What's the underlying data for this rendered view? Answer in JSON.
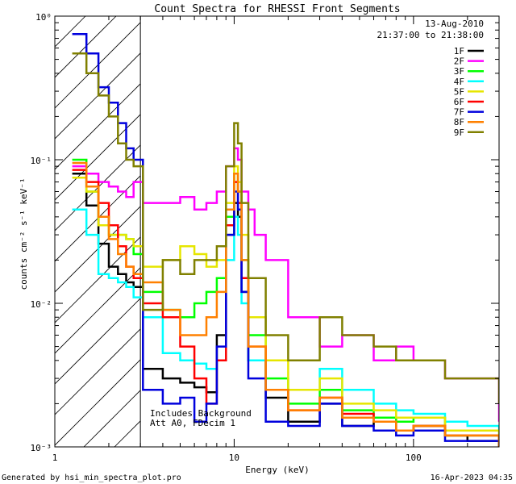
{
  "chart_data": {
    "type": "line",
    "title": "Count Spectra for RHESSI Front Segments",
    "xlabel": "Energy (keV)",
    "ylabel": "counts cm⁻² s⁻¹ keV⁻¹",
    "xscale": "log",
    "yscale": "log",
    "xlim": [
      1,
      300
    ],
    "ylim": [
      0.001,
      1
    ],
    "xticks": [
      {
        "value": 1,
        "label": "1"
      },
      {
        "value": 10,
        "label": "10"
      },
      {
        "value": 100,
        "label": "100"
      }
    ],
    "yticks": [
      {
        "value": 1,
        "label": "10⁰"
      },
      {
        "value": 0.1,
        "label": "10⁻¹"
      },
      {
        "value": 0.01,
        "label": "10⁻²"
      },
      {
        "value": 0.001,
        "label": "10⁻³"
      }
    ],
    "grid": false,
    "legend_position": "top-right",
    "header_lines": [
      "13-Aug-2010",
      "21:37:00 to 21:38:00"
    ],
    "annotation_lines": [
      "Includes Background",
      "Att A0, FDecim 1"
    ],
    "hatched_region_x": [
      1,
      3
    ],
    "series": [
      {
        "name": "1F",
        "color": "#000000",
        "x": [
          1.25,
          1.5,
          1.75,
          2.0,
          2.25,
          2.5,
          2.75,
          3.1,
          4,
          5,
          6,
          7,
          8,
          9,
          10,
          10.5,
          11,
          12,
          15,
          20,
          30,
          40,
          60,
          80,
          100,
          150,
          200,
          300
        ],
        "y": [
          0.08,
          0.048,
          0.026,
          0.018,
          0.016,
          0.014,
          0.013,
          0.0035,
          0.003,
          0.0028,
          0.0026,
          0.0024,
          0.006,
          0.03,
          0.05,
          0.04,
          0.012,
          0.004,
          0.0022,
          0.0015,
          0.002,
          0.0014,
          0.0015,
          0.0013,
          0.0014,
          0.0012,
          0.0011,
          0.001
        ]
      },
      {
        "name": "2F",
        "color": "#ff00ff",
        "x": [
          1.25,
          1.5,
          1.75,
          2.0,
          2.25,
          2.5,
          2.75,
          3.1,
          4,
          5,
          6,
          7,
          8,
          9,
          10,
          10.5,
          11,
          12,
          13,
          15,
          20,
          30,
          40,
          60,
          80,
          100,
          150,
          200,
          300
        ],
        "y": [
          0.09,
          0.08,
          0.07,
          0.065,
          0.06,
          0.055,
          0.07,
          0.05,
          0.05,
          0.055,
          0.045,
          0.05,
          0.06,
          0.09,
          0.12,
          0.1,
          0.06,
          0.045,
          0.03,
          0.02,
          0.008,
          0.005,
          0.006,
          0.004,
          0.005,
          0.004,
          0.003,
          0.003,
          0.0015
        ]
      },
      {
        "name": "3F",
        "color": "#00ff00",
        "x": [
          1.25,
          1.5,
          1.75,
          2.0,
          2.25,
          2.5,
          2.75,
          3.1,
          4,
          5,
          6,
          7,
          8,
          9,
          10,
          10.5,
          11,
          12,
          15,
          20,
          30,
          40,
          60,
          80,
          100,
          150,
          200,
          300
        ],
        "y": [
          0.1,
          0.06,
          0.04,
          0.03,
          0.03,
          0.028,
          0.022,
          0.012,
          0.009,
          0.008,
          0.01,
          0.012,
          0.015,
          0.04,
          0.08,
          0.06,
          0.02,
          0.006,
          0.003,
          0.002,
          0.0025,
          0.0018,
          0.0016,
          0.0015,
          0.0016,
          0.0012,
          0.0012,
          0.001
        ]
      },
      {
        "name": "4F",
        "color": "#00ffff",
        "x": [
          1.25,
          1.5,
          1.75,
          2.0,
          2.25,
          2.5,
          2.75,
          3.1,
          4,
          5,
          6,
          7,
          8,
          9,
          10,
          10.5,
          11,
          12,
          15,
          20,
          30,
          40,
          60,
          80,
          100,
          150,
          200,
          300
        ],
        "y": [
          0.045,
          0.03,
          0.016,
          0.015,
          0.014,
          0.013,
          0.011,
          0.008,
          0.0045,
          0.004,
          0.0038,
          0.0035,
          0.004,
          0.02,
          0.04,
          0.03,
          0.01,
          0.004,
          0.0025,
          0.0025,
          0.0035,
          0.0025,
          0.002,
          0.0018,
          0.0017,
          0.0015,
          0.0014,
          0.0012
        ]
      },
      {
        "name": "5F",
        "color": "#e6e600",
        "x": [
          1.25,
          1.5,
          1.75,
          2.0,
          2.25,
          2.5,
          2.75,
          3.1,
          4,
          5,
          6,
          7,
          8,
          9,
          10,
          10.5,
          11,
          12,
          15,
          20,
          30,
          40,
          60,
          80,
          100,
          150,
          200,
          300
        ],
        "y": [
          0.075,
          0.06,
          0.035,
          0.03,
          0.03,
          0.028,
          0.025,
          0.018,
          0.02,
          0.025,
          0.022,
          0.018,
          0.02,
          0.05,
          0.09,
          0.07,
          0.03,
          0.008,
          0.004,
          0.0025,
          0.003,
          0.002,
          0.0018,
          0.0016,
          0.0016,
          0.0013,
          0.0013,
          0.0011
        ]
      },
      {
        "name": "6F",
        "color": "#ff0000",
        "x": [
          1.25,
          1.5,
          1.75,
          2.0,
          2.25,
          2.5,
          2.75,
          3.1,
          4,
          5,
          6,
          7,
          8,
          9,
          10,
          10.5,
          11,
          12,
          15,
          20,
          30,
          40,
          60,
          80,
          100,
          150,
          200,
          300
        ],
        "y": [
          0.085,
          0.07,
          0.05,
          0.035,
          0.025,
          0.018,
          0.015,
          0.01,
          0.008,
          0.005,
          0.003,
          0.002,
          0.004,
          0.035,
          0.07,
          0.05,
          0.015,
          0.005,
          0.0025,
          0.0018,
          0.0022,
          0.0017,
          0.0015,
          0.0013,
          0.0014,
          0.0012,
          0.0012,
          0.001
        ]
      },
      {
        "name": "7F",
        "color": "#0000dd",
        "x": [
          1.25,
          1.5,
          1.75,
          2.0,
          2.25,
          2.5,
          2.75,
          3.1,
          4,
          5,
          6,
          7,
          8,
          9,
          10,
          10.5,
          11,
          12,
          15,
          20,
          30,
          40,
          60,
          80,
          100,
          150,
          200,
          300
        ],
        "y": [
          0.75,
          0.55,
          0.32,
          0.25,
          0.18,
          0.12,
          0.1,
          0.0025,
          0.002,
          0.0022,
          0.0015,
          0.002,
          0.005,
          0.03,
          0.06,
          0.045,
          0.012,
          0.003,
          0.0015,
          0.0014,
          0.002,
          0.0014,
          0.0013,
          0.0012,
          0.0013,
          0.0011,
          0.0011,
          0.001
        ]
      },
      {
        "name": "8F",
        "color": "#ff8000",
        "x": [
          1.25,
          1.5,
          1.75,
          2.0,
          2.25,
          2.5,
          2.75,
          3.1,
          4,
          5,
          6,
          7,
          8,
          9,
          10,
          10.5,
          11,
          12,
          15,
          20,
          30,
          40,
          60,
          80,
          100,
          150,
          200,
          300
        ],
        "y": [
          0.095,
          0.065,
          0.04,
          0.028,
          0.022,
          0.018,
          0.016,
          0.014,
          0.009,
          0.006,
          0.006,
          0.008,
          0.012,
          0.045,
          0.08,
          0.06,
          0.02,
          0.005,
          0.0025,
          0.0018,
          0.0022,
          0.0016,
          0.0015,
          0.0013,
          0.0014,
          0.0012,
          0.0012,
          0.001
        ]
      },
      {
        "name": "9F",
        "color": "#808000",
        "x": [
          1.25,
          1.5,
          1.75,
          2.0,
          2.25,
          2.5,
          2.75,
          3.1,
          4,
          5,
          6,
          7,
          8,
          9,
          10,
          10.5,
          11,
          12,
          15,
          20,
          30,
          40,
          60,
          80,
          100,
          150,
          200,
          300
        ],
        "y": [
          0.55,
          0.4,
          0.28,
          0.2,
          0.13,
          0.1,
          0.09,
          0.009,
          0.02,
          0.016,
          0.02,
          0.02,
          0.025,
          0.09,
          0.18,
          0.13,
          0.05,
          0.015,
          0.006,
          0.004,
          0.008,
          0.006,
          0.005,
          0.004,
          0.004,
          0.003,
          0.003,
          0.002
        ]
      }
    ]
  },
  "footer": {
    "left": "Generated by hsi_min_spectra_plot.pro",
    "right": "16-Apr-2023 04:35"
  }
}
